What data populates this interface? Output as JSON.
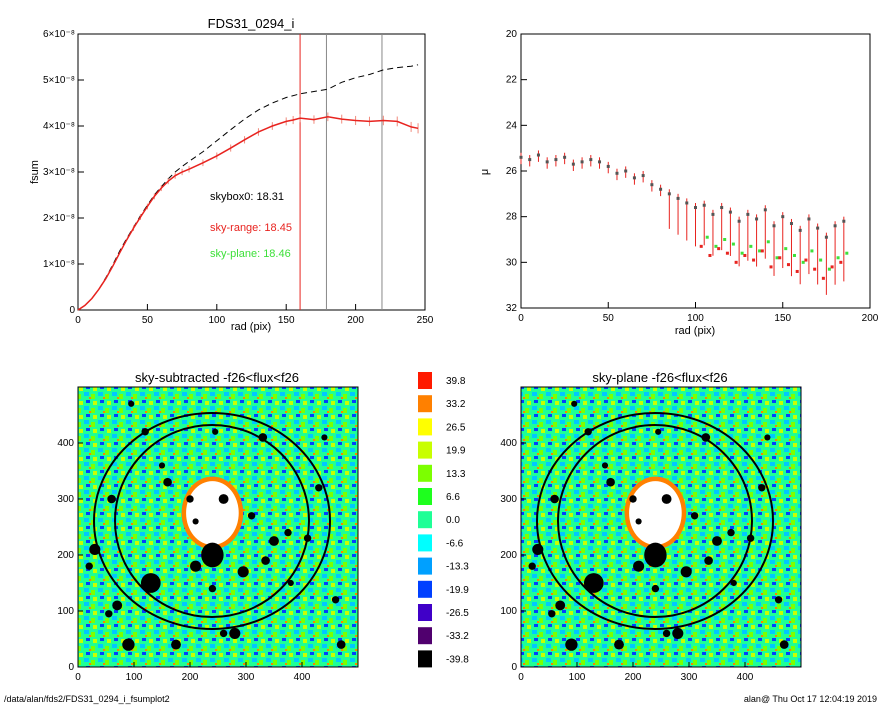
{
  "footer": {
    "left": "/data/alan/fds2/FDS31_0294_i_fsumplot2",
    "right": "alan@  Thu Oct 17 12:04:19 2019"
  },
  "colors": {
    "data_red": "#e8231f",
    "errbar": "#f08a7c",
    "sky_plane_green": "#3ee03a",
    "gray_line": "#888888",
    "black": "#000000"
  },
  "chart_data": [
    {
      "type": "line",
      "title": "FDS31_0294_i",
      "xlabel": "rad (pix)",
      "ylabel": "fsum",
      "xlim": [
        0,
        250
      ],
      "ylim": [
        0,
        6e-08
      ],
      "xticks": [
        "0",
        "50",
        "100",
        "150",
        "200",
        "250"
      ],
      "yticks": [
        "0",
        "1×10⁻⁸",
        "2×10⁻⁸",
        "3×10⁻⁸",
        "4×10⁻⁸",
        "5×10⁻⁸",
        "6×10⁻⁸"
      ],
      "vertical_lines": [
        {
          "x": 160,
          "color": "#e8231f"
        },
        {
          "x": 179,
          "color": "#888888"
        },
        {
          "x": 219,
          "color": "#888888"
        }
      ],
      "annotations": [
        {
          "text": "skybox0: 18.31",
          "color": "#000000"
        },
        {
          "text": "sky-range: 18.45",
          "color": "#e8231f"
        },
        {
          "text": "sky-plane: 18.46",
          "color": "#3ee03a"
        }
      ],
      "series": [
        {
          "style": "dashed-black",
          "x": [
            0,
            5,
            10,
            15,
            20,
            25,
            30,
            35,
            40,
            45,
            50,
            55,
            60,
            65,
            70,
            75,
            80,
            90,
            100,
            110,
            120,
            130,
            140,
            150,
            160,
            170,
            180,
            190,
            200,
            210,
            220,
            230,
            240,
            245
          ],
          "y": [
            0,
            1e-09,
            2.5e-09,
            4.5e-09,
            7e-09,
            9.8e-09,
            1.28e-08,
            1.55e-08,
            1.8e-08,
            2.05e-08,
            2.28e-08,
            2.5e-08,
            2.68e-08,
            2.85e-08,
            3e-08,
            3.12e-08,
            3.23e-08,
            3.44e-08,
            3.68e-08,
            3.92e-08,
            4.15e-08,
            4.35e-08,
            4.5e-08,
            4.62e-08,
            4.7e-08,
            4.75e-08,
            4.8e-08,
            4.95e-08,
            5.05e-08,
            5.12e-08,
            5.22e-08,
            5.27e-08,
            5.3e-08,
            5.33e-08
          ]
        },
        {
          "style": "solid-red-with-errors",
          "x": [
            0,
            5,
            10,
            15,
            20,
            25,
            30,
            35,
            40,
            45,
            50,
            55,
            60,
            65,
            70,
            75,
            80,
            90,
            100,
            110,
            120,
            130,
            140,
            150,
            155,
            160,
            170,
            180,
            190,
            200,
            210,
            220,
            230,
            240,
            245
          ],
          "y": [
            0,
            1e-09,
            2.5e-09,
            4.5e-09,
            6.8e-09,
            9.5e-09,
            1.24e-08,
            1.52e-08,
            1.78e-08,
            2.02e-08,
            2.25e-08,
            2.47e-08,
            2.65e-08,
            2.8e-08,
            2.92e-08,
            3e-08,
            3.06e-08,
            3.2e-08,
            3.35e-08,
            3.52e-08,
            3.7e-08,
            3.87e-08,
            4e-08,
            4.1e-08,
            4.13e-08,
            4.17e-08,
            4.14e-08,
            4.2e-08,
            4.15e-08,
            4.12e-08,
            4.1e-08,
            4.12e-08,
            4.1e-08,
            3.98e-08,
            3.95e-08
          ]
        }
      ]
    },
    {
      "type": "scatter",
      "title": "",
      "xlabel": "rad (pix)",
      "ylabel": "μ",
      "xlim": [
        0,
        200
      ],
      "ylim": [
        32,
        20
      ],
      "xticks": [
        "0",
        "50",
        "100",
        "150",
        "200"
      ],
      "yticks": [
        "20",
        "22",
        "24",
        "26",
        "28",
        "30",
        "32"
      ],
      "series": [
        {
          "style": "points-with-red-errorbars",
          "x": [
            0,
            5,
            10,
            15,
            20,
            25,
            30,
            35,
            40,
            45,
            50,
            55,
            60,
            65,
            70,
            75,
            80,
            85,
            90,
            95,
            100,
            105,
            110,
            115,
            120,
            125,
            130,
            135,
            140,
            145,
            150,
            155,
            160,
            165,
            170,
            175,
            180,
            185
          ],
          "y": [
            25.4,
            25.5,
            25.3,
            25.6,
            25.5,
            25.4,
            25.7,
            25.6,
            25.5,
            25.6,
            25.8,
            26.1,
            26.0,
            26.3,
            26.2,
            26.6,
            26.8,
            27.0,
            27.2,
            27.4,
            27.6,
            27.5,
            27.9,
            27.6,
            27.8,
            28.2,
            27.9,
            28.1,
            27.7,
            28.4,
            28.0,
            28.3,
            28.6,
            28.1,
            28.5,
            28.9,
            28.4,
            28.2
          ]
        }
      ]
    },
    {
      "type": "heatmap",
      "title": "sky-subtracted -f26<flux<f26",
      "xlim": [
        0,
        500
      ],
      "ylim": [
        0,
        500
      ],
      "xticks": [
        "0",
        "100",
        "200",
        "300",
        "400"
      ],
      "yticks": [
        "0",
        "100",
        "200",
        "300",
        "400"
      ]
    },
    {
      "type": "heatmap",
      "title": "sky-plane -f26<flux<f26",
      "xlim": [
        0,
        500
      ],
      "ylim": [
        0,
        500
      ],
      "xticks": [
        "0",
        "100",
        "200",
        "300",
        "400"
      ],
      "yticks": [
        "0",
        "100",
        "200",
        "300",
        "400"
      ]
    }
  ],
  "colorbar": {
    "levels": [
      {
        "label": "39.8",
        "color": "#ff1a00"
      },
      {
        "label": "33.2",
        "color": "#ff8000"
      },
      {
        "label": "26.5",
        "color": "#ffff00"
      },
      {
        "label": "19.9",
        "color": "#c8ff00"
      },
      {
        "label": "13.3",
        "color": "#7cff00"
      },
      {
        "label": "6.6",
        "color": "#1eff1e"
      },
      {
        "label": "0.0",
        "color": "#1eff96"
      },
      {
        "label": "-6.6",
        "color": "#00ffff"
      },
      {
        "label": "-13.3",
        "color": "#00a0ff"
      },
      {
        "label": "-19.9",
        "color": "#0040ff"
      },
      {
        "label": "-26.5",
        "color": "#4000c8"
      },
      {
        "label": "-33.2",
        "color": "#50006e"
      },
      {
        "label": "-39.8",
        "color": "#000000"
      }
    ]
  }
}
